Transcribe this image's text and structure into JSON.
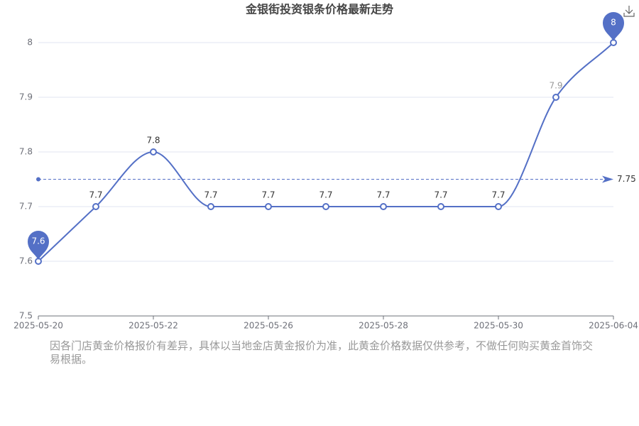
{
  "chart_data": {
    "type": "line",
    "title": "金银街投资银条价格最新走势",
    "categories": [
      "2025-05-20",
      null,
      "2025-05-22",
      null,
      "2025-05-26",
      null,
      "2025-05-28",
      null,
      "2025-05-30",
      null,
      "2025-06-04"
    ],
    "series": [
      {
        "name": null,
        "color": "#5470c6",
        "values": [
          7.6,
          7.7,
          7.8,
          7.7,
          7.7,
          7.7,
          7.7,
          7.7,
          7.7,
          7.9,
          8
        ]
      }
    ],
    "ylim": [
      7.5,
      8
    ],
    "yticks": [
      7.5,
      7.6,
      7.7,
      7.8,
      7.9,
      8
    ],
    "grid": true,
    "smooth": true,
    "mark_points": [
      "max",
      "min"
    ],
    "average_line": 7.75,
    "note": "因各门店黄金价格报价有差异，具体以当地金店黄金报价为准，此黄金价格数据仅供参考，不做任何购买黄金首饰交易根据。"
  }
}
